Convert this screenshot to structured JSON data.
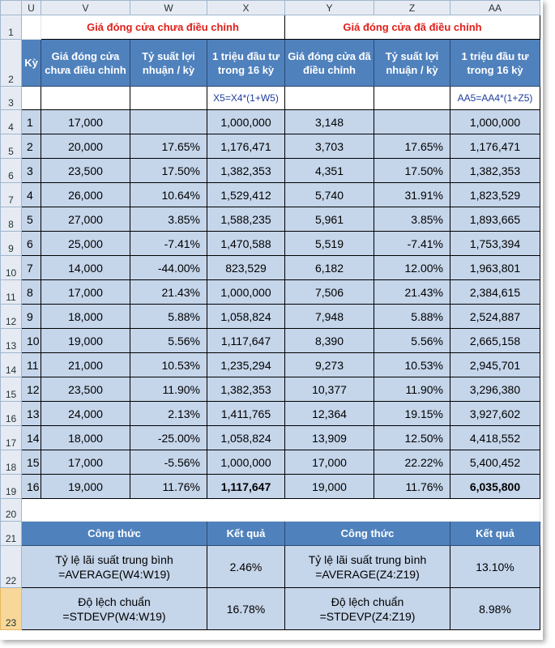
{
  "columns": [
    "U",
    "V",
    "W",
    "X",
    "Y",
    "Z",
    "AA"
  ],
  "rows": [
    "1",
    "2",
    "3",
    "4",
    "5",
    "6",
    "7",
    "8",
    "9",
    "10",
    "11",
    "12",
    "13",
    "14",
    "15",
    "16",
    "17",
    "18",
    "19",
    "20",
    "21",
    "22",
    "23"
  ],
  "titles": {
    "unadjusted": "Giá đóng cửa chưa điều chỉnh",
    "adjusted": "Giá đóng cửa đã điều chỉnh"
  },
  "headers": {
    "ky": "Kỳ",
    "v": "Giá đóng cửa chưa điều chỉnh",
    "w": "Tỷ suất lợi nhuận / kỳ",
    "x": "1 triệu đầu tư trong 16 kỳ",
    "y": "Giá đóng cửa đã điều chỉnh",
    "z": "Tỷ suất lợi nhuận / kỳ",
    "aa": "1 triệu đầu tư trong 16 kỳ"
  },
  "formulas": {
    "x": "X5=X4*(1+W5)",
    "aa": "AA5=AA4*(1+Z5)"
  },
  "data": [
    [
      "1",
      "17,000",
      "",
      "1,000,000",
      "3,148",
      "",
      "1,000,000"
    ],
    [
      "2",
      "20,000",
      "17.65%",
      "1,176,471",
      "3,703",
      "17.65%",
      "1,176,471"
    ],
    [
      "3",
      "23,500",
      "17.50%",
      "1,382,353",
      "4,351",
      "17.50%",
      "1,382,353"
    ],
    [
      "4",
      "26,000",
      "10.64%",
      "1,529,412",
      "5,740",
      "31.91%",
      "1,823,529"
    ],
    [
      "5",
      "27,000",
      "3.85%",
      "1,588,235",
      "5,961",
      "3.85%",
      "1,893,665"
    ],
    [
      "6",
      "25,000",
      "-7.41%",
      "1,470,588",
      "5,519",
      "-7.41%",
      "1,753,394"
    ],
    [
      "7",
      "14,000",
      "-44.00%",
      "823,529",
      "6,182",
      "12.00%",
      "1,963,801"
    ],
    [
      "8",
      "17,000",
      "21.43%",
      "1,000,000",
      "7,506",
      "21.43%",
      "2,384,615"
    ],
    [
      "9",
      "18,000",
      "5.88%",
      "1,058,824",
      "7,948",
      "5.88%",
      "2,524,887"
    ],
    [
      "10",
      "19,000",
      "5.56%",
      "1,117,647",
      "8,390",
      "5.56%",
      "2,665,158"
    ],
    [
      "11",
      "21,000",
      "10.53%",
      "1,235,294",
      "9,273",
      "10.53%",
      "2,945,701"
    ],
    [
      "12",
      "23,500",
      "11.90%",
      "1,382,353",
      "10,377",
      "11.90%",
      "3,296,380"
    ],
    [
      "13",
      "24,000",
      "2.13%",
      "1,411,765",
      "12,364",
      "19.15%",
      "3,927,602"
    ],
    [
      "14",
      "18,000",
      "-25.00%",
      "1,058,824",
      "13,909",
      "12.50%",
      "4,418,552"
    ],
    [
      "15",
      "17,000",
      "-5.56%",
      "1,000,000",
      "17,000",
      "22.22%",
      "5,400,452"
    ],
    [
      "16",
      "19,000",
      "11.76%",
      "1,117,647",
      "19,000",
      "11.76%",
      "6,035,800"
    ]
  ],
  "summary": {
    "formula_header": "Công thức",
    "result_header": "Kết quả",
    "left": [
      {
        "line1": "Tỷ lệ lãi suất trung bình",
        "line2": "=AVERAGE(W4:W19)",
        "value": "2.46%"
      },
      {
        "line1": "Độ lệch chuẩn",
        "line2": "=STDEVP(W4:W19)",
        "value": "16.78%"
      }
    ],
    "right": [
      {
        "line1": "Tỷ lệ lãi suất trung bình",
        "line2": "=AVERAGE(Z4:Z19)",
        "value": "13.10%"
      },
      {
        "line1": "Độ lệch chuẩn",
        "line2": "=STDEVP(Z4:Z19)",
        "value": "8.98%"
      }
    ]
  },
  "active_row": "23",
  "colors": {
    "header_blue": "#4f81bd",
    "cell_blue": "#c5d5ea",
    "title_red": "#e0201b",
    "active_row": "#f8d79a"
  }
}
